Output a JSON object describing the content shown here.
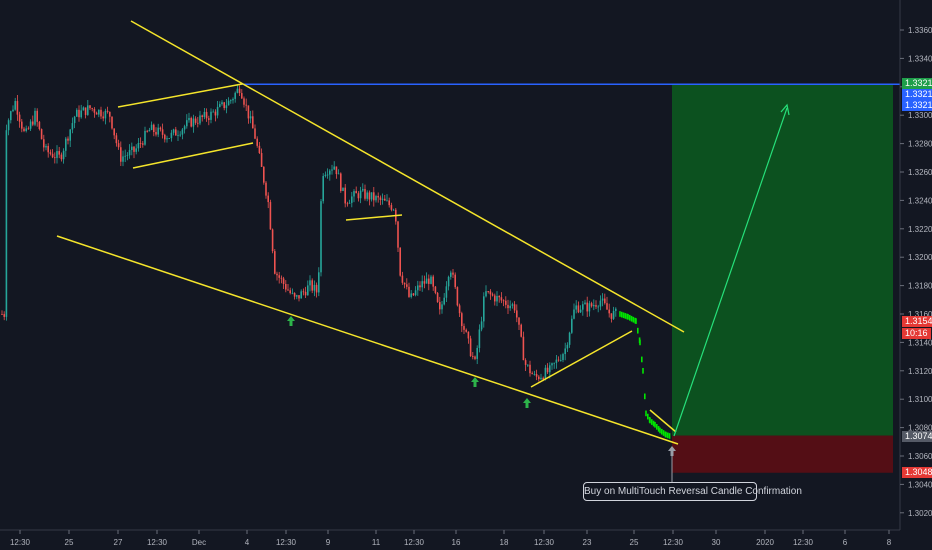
{
  "chart_data": {
    "type": "candlestick",
    "title": "",
    "y_axis": {
      "ticks": [
        1.336,
        1.334,
        1.332,
        1.33,
        1.328,
        1.326,
        1.324,
        1.322,
        1.32,
        1.318,
        1.316,
        1.314,
        1.312,
        1.31,
        1.308,
        1.306,
        1.304,
        1.302
      ],
      "range": [
        1.3005,
        1.337
      ]
    },
    "x_axis": {
      "tick_labels": [
        "12:30",
        "25",
        "27",
        "12:30",
        "Dec",
        "4",
        "12:30",
        "9",
        "11",
        "12:30",
        "16",
        "18",
        "12:30",
        "23",
        "25",
        "12:30",
        "30",
        "2020",
        "12:30",
        "6",
        "8"
      ]
    },
    "price_markers": [
      {
        "text": "1.33218",
        "color": "#1e9e4a"
      },
      {
        "text": "1.33218",
        "color": "#2962ff"
      },
      {
        "text": "1.33210",
        "color": "#2962ff"
      },
      {
        "text": "1.31547",
        "color": "#e53935"
      },
      {
        "text": "10:16",
        "color": "#e53935"
      },
      {
        "text": "1.30744",
        "color": "#555a66"
      },
      {
        "text": "1.30482",
        "color": "#e53935"
      }
    ],
    "horizontal_line": {
      "price": 1.33218,
      "color": "#2962ff"
    },
    "target_price": 1.33218,
    "entry_price": 1.30744,
    "stop_price": 1.30482,
    "annotations": [
      "Buy on MultiTouch Reversal Candle Confirmation"
    ],
    "colors": {
      "up": "#26a69a",
      "down": "#ef5350",
      "trendline": "#f5e52b",
      "recent": "#00e600",
      "profit": "#0c5c1f",
      "loss": "#5c0d14"
    }
  }
}
